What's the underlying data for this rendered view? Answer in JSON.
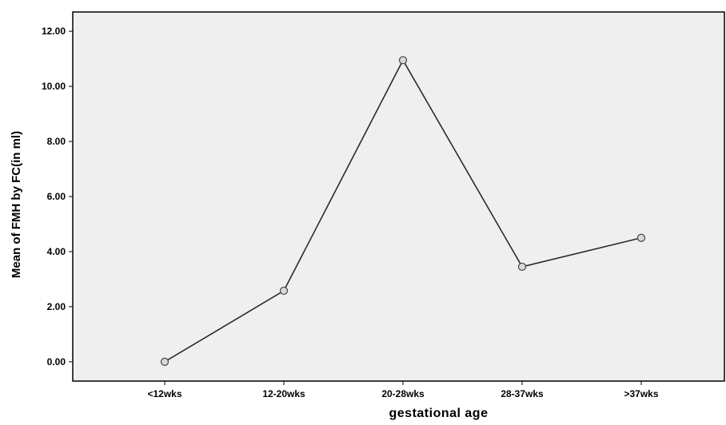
{
  "chart_data": {
    "type": "line",
    "title": "",
    "xlabel": "gestational age",
    "ylabel": "Mean of FMH by FC(in ml)",
    "categories": [
      "<12wks",
      "12-20wks",
      "20-28wks",
      "28-37wks",
      ">37wks"
    ],
    "series": [
      {
        "values": [
          0.0,
          2.58,
          10.95,
          3.45,
          4.5
        ]
      }
    ],
    "ylim": [
      -0.7,
      12.7
    ],
    "yticks": [
      "0.00",
      "2.00",
      "4.00",
      "6.00",
      "8.00",
      "10.00",
      "12.00"
    ],
    "grid": false,
    "legend": "none",
    "colors": {
      "plot_background": "#efefef",
      "line": "#2b2b2b",
      "marker_fill": "#d9d9d9",
      "marker_stroke": "#444444",
      "axis": "#000000"
    }
  }
}
